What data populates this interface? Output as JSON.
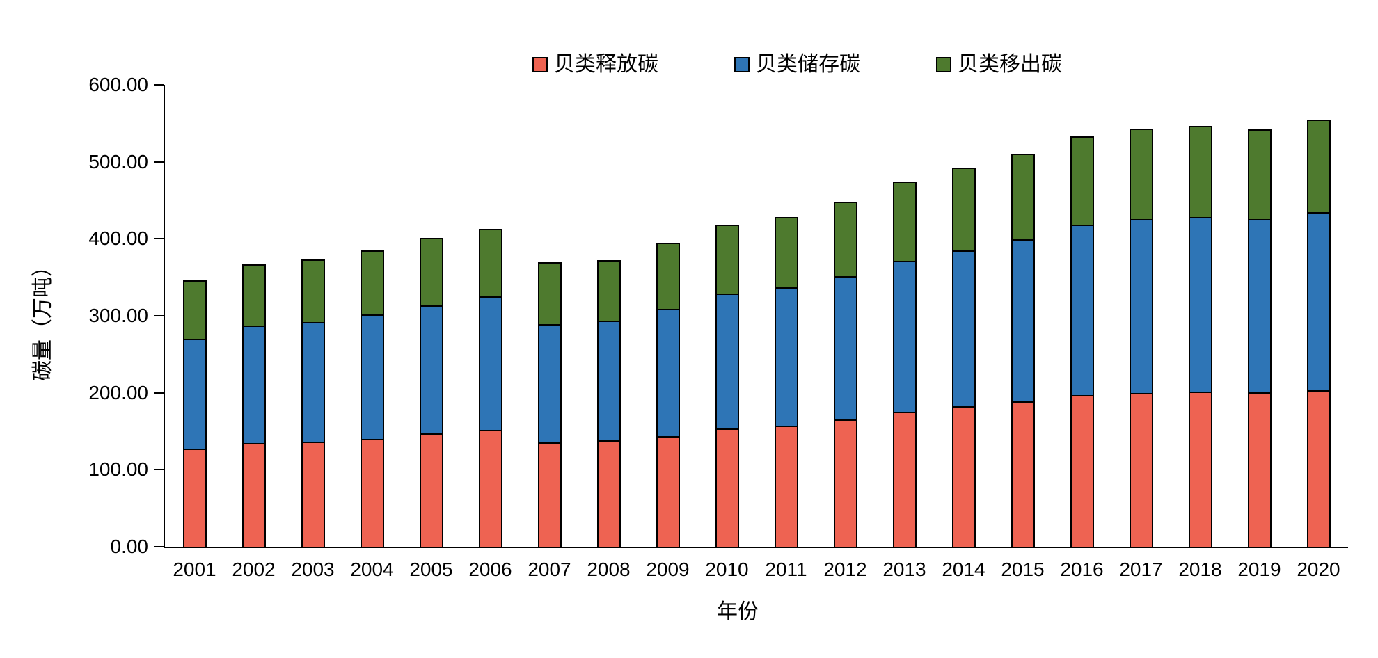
{
  "figure": {
    "background": "#ffffff",
    "axis_color": "#000000"
  },
  "legend": {
    "position": "top-center",
    "items": [
      {
        "label": "贝类释放碳",
        "color": "#EE6352"
      },
      {
        "label": "贝类储存碳",
        "color": "#2E75B6"
      },
      {
        "label": "贝类移出碳",
        "color": "#4E7A2E"
      }
    ]
  },
  "chart_data": {
    "type": "bar",
    "stacked": true,
    "title": "",
    "xlabel": "年份",
    "ylabel": "碳量（万吨）",
    "ylim": [
      0,
      600
    ],
    "ytick_step": 100,
    "ytick_labels": [
      "0.00",
      "100.00",
      "200.00",
      "300.00",
      "400.00",
      "500.00",
      "600.00"
    ],
    "grid": false,
    "legend_position": "top",
    "categories": [
      "2001",
      "2002",
      "2003",
      "2004",
      "2005",
      "2006",
      "2007",
      "2008",
      "2009",
      "2010",
      "2011",
      "2012",
      "2013",
      "2014",
      "2015",
      "2016",
      "2017",
      "2018",
      "2019",
      "2020"
    ],
    "series": [
      {
        "name": "贝类释放碳",
        "color": "#EE6352",
        "values": [
          127.3,
          134.8,
          136.3,
          140.2,
          147.5,
          152.2,
          135.7,
          137.9,
          143.8,
          153.5,
          157.0,
          165.0,
          174.9,
          182.4,
          188.4,
          196.6,
          199.5,
          201.6,
          200.5,
          203.4
        ]
      },
      {
        "name": "贝类储存碳",
        "color": "#2E75B6",
        "values": [
          142.9,
          152.6,
          155.6,
          161.7,
          165.8,
          172.8,
          153.5,
          155.8,
          165.6,
          175.5,
          179.8,
          186.5,
          196.8,
          202.9,
          211.3,
          221.8,
          225.8,
          226.7,
          224.8,
          230.9
        ]
      },
      {
        "name": "贝类移出碳",
        "color": "#4E7A2E",
        "values": [
          76.3,
          79.8,
          81.3,
          83.4,
          87.9,
          88.3,
          80.4,
          78.9,
          85.8,
          89.7,
          91.5,
          97.0,
          102.3,
          106.8,
          110.7,
          114.6,
          118.0,
          118.3,
          116.8,
          120.4
        ]
      }
    ],
    "totals": [
      346.5,
      367.2,
      373.2,
      385.3,
      401.2,
      413.3,
      369.6,
      372.6,
      395.2,
      418.7,
      428.3,
      448.5,
      474.0,
      492.1,
      510.4,
      533.0,
      543.3,
      546.6,
      542.1,
      554.7
    ]
  }
}
